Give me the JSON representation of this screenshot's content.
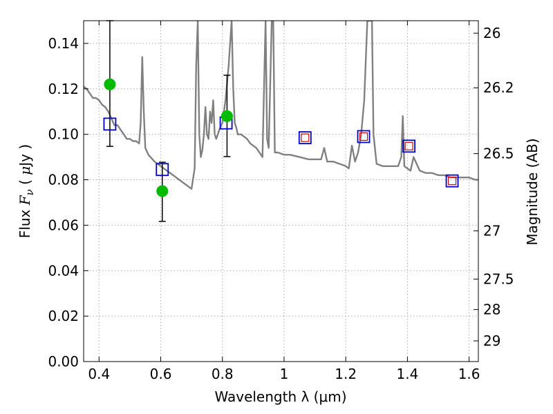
{
  "chart_data": {
    "type": "line",
    "xlabel": "Wavelength  λ (μm)",
    "ylabel_parts": [
      "Flux ",
      "F",
      "ν",
      " ( ",
      "μ",
      "Jy )"
    ],
    "right_ylabel": "Magnitude (AB)",
    "xlim": [
      0.35,
      1.63
    ],
    "ylim": [
      0.0,
      0.15
    ],
    "grid": true,
    "x_ticks": [
      0.4,
      0.6,
      0.8,
      1.0,
      1.2,
      1.4,
      1.6
    ],
    "x_tick_labels": [
      "0.4",
      "0.6",
      "0.8",
      "1",
      "1.2",
      "1.4",
      "1.6"
    ],
    "y_ticks": [
      0.0,
      0.02,
      0.04,
      0.06,
      0.08,
      0.1,
      0.12,
      0.14
    ],
    "y_tick_labels": [
      "0.00",
      "0.02",
      "0.04",
      "0.06",
      "0.08",
      "0.10",
      "0.12",
      "0.14"
    ],
    "right_ticks": [
      {
        "flux": 0.1445,
        "label": "26"
      },
      {
        "flux": 0.1205,
        "label": "26.2"
      },
      {
        "flux": 0.0915,
        "label": "26.5"
      },
      {
        "flux": 0.0575,
        "label": "27"
      },
      {
        "flux": 0.0363,
        "label": "27.5"
      },
      {
        "flux": 0.0229,
        "label": "28"
      },
      {
        "flux": 0.0091,
        "label": "29"
      }
    ],
    "colors": {
      "spectrum": "#808080",
      "observed": "#00bb00",
      "model_box": "#0000cc",
      "model_inner": "#cc0000",
      "error_bar": "#000000",
      "grid": "#aaaaaa"
    },
    "series": [
      {
        "style": "spectrum",
        "x": [
          0.35,
          0.36,
          0.37,
          0.38,
          0.39,
          0.4,
          0.41,
          0.42,
          0.43,
          0.44,
          0.45,
          0.46,
          0.47,
          0.48,
          0.49,
          0.5,
          0.51,
          0.52,
          0.53,
          0.535,
          0.54,
          0.545,
          0.55,
          0.56,
          0.58,
          0.6,
          0.62,
          0.64,
          0.66,
          0.68,
          0.7,
          0.71,
          0.715,
          0.72,
          0.725,
          0.73,
          0.735,
          0.74,
          0.745,
          0.75,
          0.755,
          0.76,
          0.765,
          0.77,
          0.775,
          0.78,
          0.785,
          0.79,
          0.8,
          0.81,
          0.82,
          0.83,
          0.835,
          0.84,
          0.845,
          0.85,
          0.86,
          0.87,
          0.88,
          0.89,
          0.9,
          0.91,
          0.92,
          0.93,
          0.94,
          0.945,
          0.95,
          0.96,
          0.965,
          0.97,
          0.98,
          1.0,
          1.02,
          1.05,
          1.08,
          1.1,
          1.12,
          1.13,
          1.14,
          1.16,
          1.18,
          1.2,
          1.21,
          1.22,
          1.23,
          1.24,
          1.25,
          1.26,
          1.27,
          1.275,
          1.28,
          1.285,
          1.29,
          1.3,
          1.32,
          1.34,
          1.36,
          1.37,
          1.38,
          1.385,
          1.39,
          1.4,
          1.41,
          1.42,
          1.44,
          1.46,
          1.48,
          1.5,
          1.52,
          1.54,
          1.56,
          1.58,
          1.6,
          1.62,
          1.63
        ],
        "y": [
          0.121,
          0.12,
          0.118,
          0.116,
          0.116,
          0.115,
          0.113,
          0.112,
          0.11,
          0.107,
          0.104,
          0.104,
          0.102,
          0.1,
          0.098,
          0.098,
          0.097,
          0.097,
          0.096,
          0.105,
          0.134,
          0.11,
          0.094,
          0.091,
          0.088,
          0.086,
          0.084,
          0.082,
          0.08,
          0.078,
          0.076,
          0.085,
          0.13,
          0.15,
          0.1,
          0.09,
          0.093,
          0.1,
          0.112,
          0.1,
          0.098,
          0.11,
          0.105,
          0.115,
          0.1,
          0.098,
          0.1,
          0.102,
          0.105,
          0.115,
          0.13,
          0.15,
          0.12,
          0.105,
          0.103,
          0.1,
          0.1,
          0.099,
          0.098,
          0.096,
          0.095,
          0.094,
          0.092,
          0.09,
          0.15,
          0.098,
          0.094,
          0.15,
          0.15,
          0.092,
          0.092,
          0.091,
          0.091,
          0.09,
          0.089,
          0.089,
          0.089,
          0.094,
          0.088,
          0.088,
          0.087,
          0.086,
          0.085,
          0.095,
          0.088,
          0.092,
          0.1,
          0.115,
          0.15,
          0.15,
          0.15,
          0.15,
          0.1,
          0.087,
          0.086,
          0.086,
          0.086,
          0.086,
          0.09,
          0.108,
          0.086,
          0.085,
          0.084,
          0.09,
          0.084,
          0.083,
          0.083,
          0.082,
          0.082,
          0.081,
          0.081,
          0.081,
          0.081,
          0.08,
          0.08
        ]
      },
      {
        "name": "observed",
        "style": "observed",
        "points": [
          {
            "x": 0.435,
            "y": 0.122,
            "yerr_lo": 0.0947,
            "yerr_hi": 0.15
          },
          {
            "x": 0.605,
            "y": 0.075,
            "yerr_lo": 0.0617,
            "yerr_hi": 0.0877
          },
          {
            "x": 0.815,
            "y": 0.108,
            "yerr_lo": 0.0902,
            "yerr_hi": 0.126
          }
        ]
      },
      {
        "name": "model",
        "style": "model",
        "points": [
          {
            "x": 0.435,
            "y": 0.1045
          },
          {
            "x": 0.605,
            "y": 0.0845
          },
          {
            "x": 0.812,
            "y": 0.105
          },
          {
            "x": 1.068,
            "y": 0.0985
          },
          {
            "x": 1.258,
            "y": 0.099
          },
          {
            "x": 1.405,
            "y": 0.0948
          },
          {
            "x": 1.545,
            "y": 0.0795
          }
        ]
      },
      {
        "name": "model-inner",
        "style": "model_inner",
        "points": [
          {
            "x": 1.068,
            "y": 0.0985
          },
          {
            "x": 1.258,
            "y": 0.099
          },
          {
            "x": 1.405,
            "y": 0.0948
          },
          {
            "x": 1.545,
            "y": 0.0795
          }
        ]
      }
    ]
  }
}
